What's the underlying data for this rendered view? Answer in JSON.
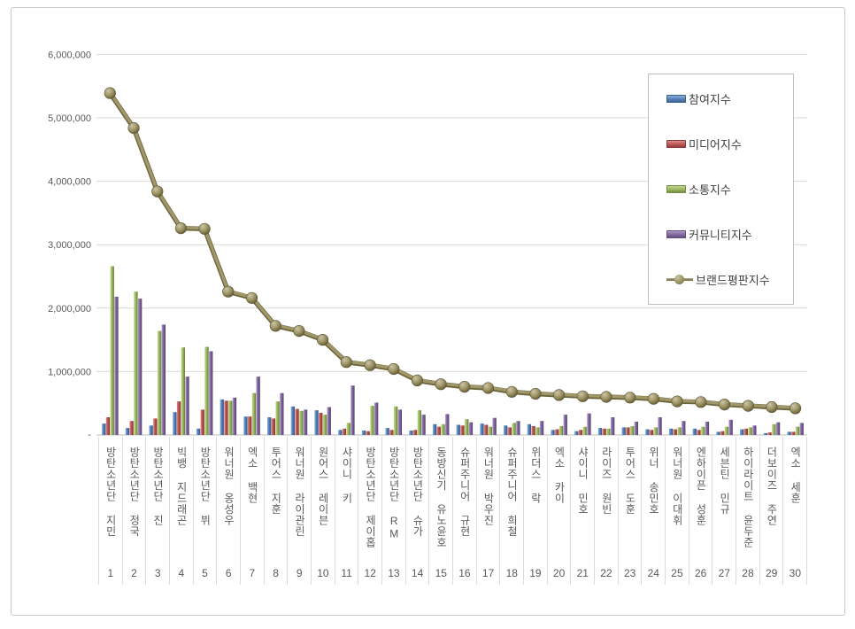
{
  "chart_data": {
    "type": "bar",
    "title": "",
    "subtitle": "",
    "legend_position": "right-top",
    "grid": true,
    "y_axis": {
      "min": 0,
      "max": 6000000,
      "tick_interval": 1000000,
      "tick_labels": [
        "6,000,000",
        "5,000,000",
        "4,000,000",
        "3,000,000",
        "2,000,000",
        "1,000,000",
        "-"
      ]
    },
    "categories": [
      "방탄소년단 지민",
      "방탄소년단 정국",
      "방탄소년단 진",
      "빅뱅 지드래곤",
      "방탄소년단 뷔",
      "워너원 옹성우",
      "엑소 백현",
      "투어스 지훈",
      "워너원 라이관린",
      "원어스 레이븐",
      "샤이니 키",
      "방탄소년단 제이홉",
      "방탄소년단 RM",
      "방탄소년단 슈가",
      "동방신기 유노윤호",
      "슈퍼주니어 규현",
      "워너원 박우진",
      "슈퍼주니어 희철",
      "위더스 락",
      "엑소 카이",
      "샤이니 민호",
      "라이즈 원빈",
      "투어스 도훈",
      "위너 송민호",
      "워너원 이대휘",
      "엔하이픈 성훈",
      "세븐틴 민규",
      "하이라이트 윤두준",
      "더보이즈 주연",
      "엑소 세훈"
    ],
    "ranks": [
      "1",
      "2",
      "3",
      "4",
      "5",
      "6",
      "7",
      "8",
      "9",
      "10",
      "11",
      "12",
      "13",
      "14",
      "15",
      "16",
      "17",
      "18",
      "19",
      "20",
      "21",
      "22",
      "23",
      "24",
      "25",
      "26",
      "27",
      "28",
      "29",
      "30"
    ],
    "series": [
      {
        "name": "참여지수",
        "color": "#4F81BD",
        "values": [
          180000,
          110000,
          150000,
          360000,
          100000,
          560000,
          290000,
          280000,
          450000,
          390000,
          80000,
          70000,
          110000,
          70000,
          170000,
          160000,
          180000,
          150000,
          170000,
          80000,
          60000,
          110000,
          120000,
          90000,
          100000,
          100000,
          50000,
          90000,
          30000,
          50000
        ]
      },
      {
        "name": "미디어지수",
        "color": "#C0504D",
        "values": [
          280000,
          220000,
          260000,
          530000,
          400000,
          540000,
          290000,
          260000,
          410000,
          350000,
          100000,
          60000,
          80000,
          80000,
          130000,
          150000,
          160000,
          120000,
          140000,
          90000,
          80000,
          100000,
          120000,
          80000,
          90000,
          80000,
          60000,
          100000,
          40000,
          50000
        ]
      },
      {
        "name": "소통지수",
        "color": "#9BBB59",
        "values": [
          2660000,
          2260000,
          1640000,
          1380000,
          1390000,
          540000,
          660000,
          530000,
          380000,
          320000,
          190000,
          460000,
          450000,
          390000,
          170000,
          250000,
          130000,
          190000,
          120000,
          140000,
          130000,
          100000,
          140000,
          120000,
          120000,
          130000,
          130000,
          120000,
          170000,
          130000
        ]
      },
      {
        "name": "커뮤니티지수",
        "color": "#8064A2",
        "values": [
          2180000,
          2150000,
          1740000,
          920000,
          1320000,
          590000,
          920000,
          660000,
          400000,
          440000,
          780000,
          510000,
          400000,
          320000,
          330000,
          200000,
          270000,
          220000,
          220000,
          320000,
          340000,
          280000,
          210000,
          280000,
          220000,
          210000,
          240000,
          150000,
          200000,
          190000
        ]
      }
    ],
    "line_series": {
      "name": "브랜드평판지수",
      "color": "#948A54",
      "values": [
        5390000,
        4840000,
        3840000,
        3260000,
        3250000,
        2260000,
        2160000,
        1720000,
        1640000,
        1500000,
        1150000,
        1100000,
        1040000,
        860000,
        800000,
        760000,
        740000,
        680000,
        650000,
        630000,
        610000,
        600000,
        590000,
        570000,
        530000,
        520000,
        480000,
        460000,
        440000,
        420000
      ]
    },
    "colors": {
      "grid": "#d9d9d9",
      "axis": "#bfbfbf",
      "label": "#595959",
      "frame_border": "#c9c9c9",
      "legend_border": "#bfbfbf",
      "background": "#ffffff"
    }
  }
}
